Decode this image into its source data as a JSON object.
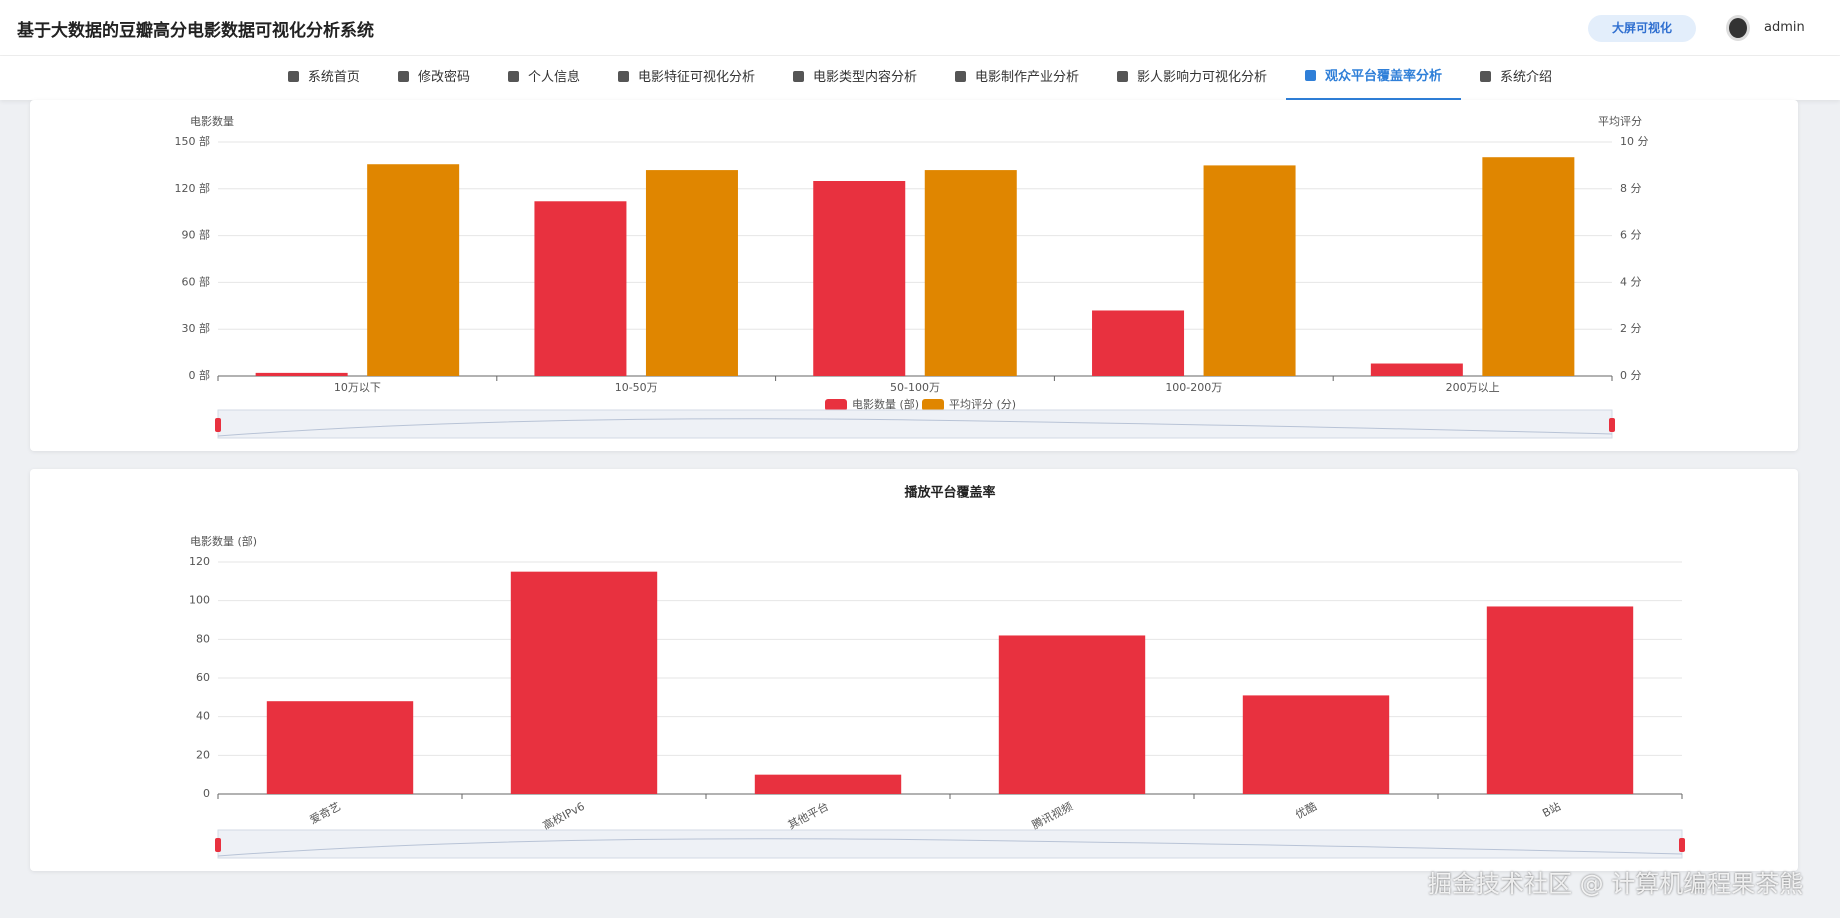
{
  "header": {
    "title": "基于大数据的豆瓣高分电影数据可视化分析系统",
    "screen_button": "大屏可视化",
    "user": "admin"
  },
  "nav": [
    "系统首页",
    "修改密码",
    "个人信息",
    "电影特征可视化分析",
    "电影类型内容分析",
    "电影制作产业分析",
    "影人影响力可视化分析",
    "观众平台覆盖率分析",
    "系统介绍"
  ],
  "nav_active": 7,
  "watermark": "掘金技术社区 @ 计算机编程果茶熊",
  "chart_data": [
    {
      "type": "bar",
      "ylabel": "电影数量",
      "y2label": "平均评分",
      "categories": [
        "10万以下",
        "10-50万",
        "50-100万",
        "100-200万",
        "200万以上"
      ],
      "series": [
        {
          "name": "电影数量 (部)",
          "color": "#e8313f",
          "values": [
            2,
            112,
            125,
            42,
            8
          ]
        },
        {
          "name": "平均评分 (分)",
          "color": "#e08600",
          "axis": "y2",
          "values": [
            9.05,
            8.8,
            8.8,
            9.0,
            9.35
          ]
        }
      ],
      "ylim": [
        0,
        150
      ],
      "yticks": [
        {
          "value": 0,
          "label": "0 部"
        },
        {
          "value": 30,
          "label": "30 部"
        },
        {
          "value": 60,
          "label": "60 部"
        },
        {
          "value": 90,
          "label": "90 部"
        },
        {
          "value": 120,
          "label": "120 部"
        },
        {
          "value": 150,
          "label": "150 部"
        }
      ],
      "y2lim": [
        0,
        10
      ],
      "y2ticks": [
        {
          "value": 0,
          "label": "0 分"
        },
        {
          "value": 2,
          "label": "2 分"
        },
        {
          "value": 4,
          "label": "4 分"
        },
        {
          "value": 6,
          "label": "6 分"
        },
        {
          "value": 8,
          "label": "8 分"
        },
        {
          "value": 10,
          "label": "10 分"
        }
      ],
      "grid": true
    },
    {
      "type": "bar",
      "title": "播放平台覆盖率",
      "ylabel": "电影数量 (部)",
      "categories": [
        "爱奇艺",
        "高校IPv6",
        "其他平台",
        "腾讯视频",
        "优酷",
        "B站"
      ],
      "values": [
        48,
        115,
        10,
        82,
        51,
        97
      ],
      "color": "#e8313f",
      "ylim": [
        0,
        120
      ],
      "yticks": [
        0,
        20,
        40,
        60,
        80,
        100,
        120
      ],
      "grid": true
    }
  ]
}
